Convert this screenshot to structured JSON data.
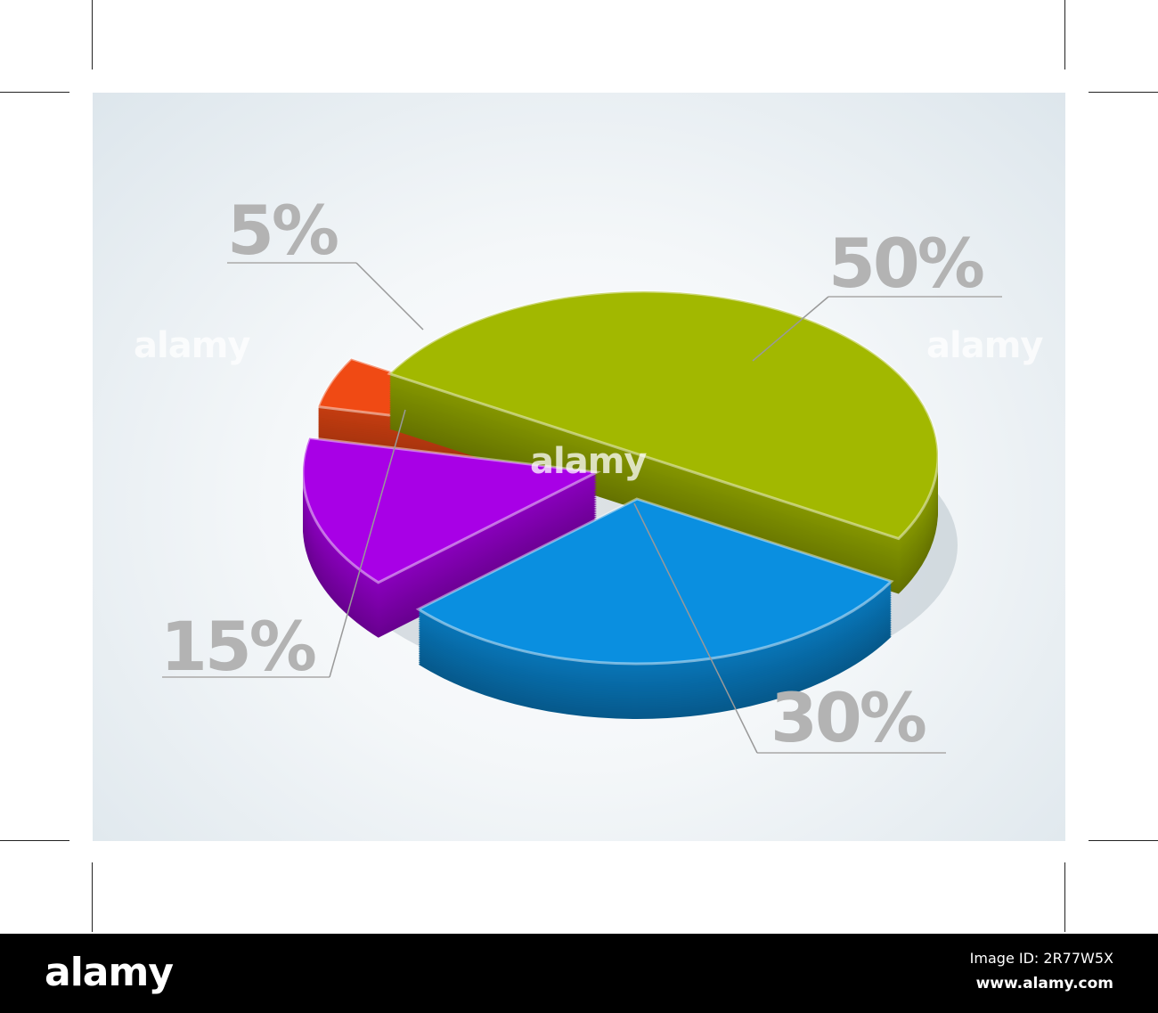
{
  "chart_data": {
    "type": "pie",
    "style": "3d-exploded",
    "slices": [
      {
        "label": "50%",
        "value": 50,
        "color": "#a2b800"
      },
      {
        "label": "30%",
        "value": 30,
        "color": "#0a8fe0"
      },
      {
        "label": "15%",
        "value": 15,
        "color": "#a800e6"
      },
      {
        "label": "5%",
        "value": 5,
        "color": "#f04a14"
      }
    ],
    "label_color": "#b3b3b3"
  },
  "watermark": "alamy",
  "footer": {
    "logo": "alamy",
    "image_id": "Image ID: 2R77W5X",
    "url": "www.alamy.com"
  }
}
